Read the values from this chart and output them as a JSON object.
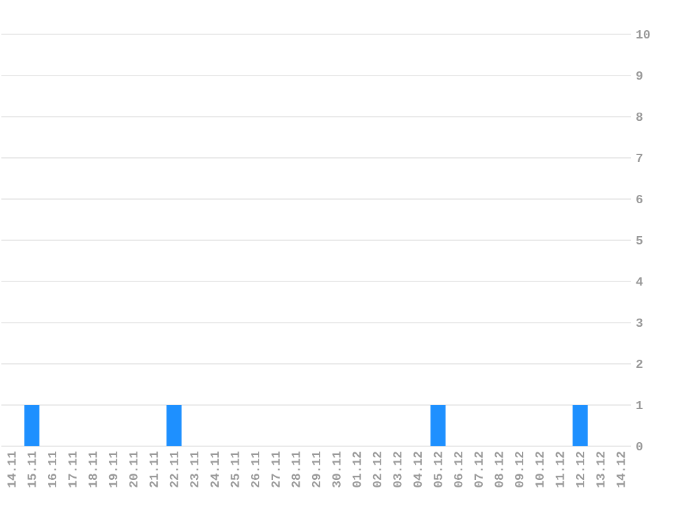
{
  "chart_data": {
    "type": "bar",
    "categories": [
      "14.11",
      "15.11",
      "16.11",
      "17.11",
      "18.11",
      "19.11",
      "20.11",
      "21.11",
      "22.11",
      "23.11",
      "24.11",
      "25.11",
      "26.11",
      "27.11",
      "28.11",
      "29.11",
      "30.11",
      "01.12",
      "02.12",
      "03.12",
      "04.12",
      "05.12",
      "06.12",
      "07.12",
      "08.12",
      "09.12",
      "10.12",
      "11.12",
      "12.12",
      "13.12",
      "14.12"
    ],
    "values": [
      0,
      1,
      0,
      0,
      0,
      0,
      0,
      0,
      1,
      0,
      0,
      0,
      0,
      0,
      0,
      0,
      0,
      0,
      0,
      0,
      0,
      1,
      0,
      0,
      0,
      0,
      0,
      0,
      1,
      0,
      0
    ],
    "color": "#1e90ff",
    "ylim": [
      0,
      10
    ],
    "yticks": [
      0,
      1,
      2,
      3,
      4,
      5,
      6,
      7,
      8,
      9,
      10
    ],
    "grid": "y"
  }
}
